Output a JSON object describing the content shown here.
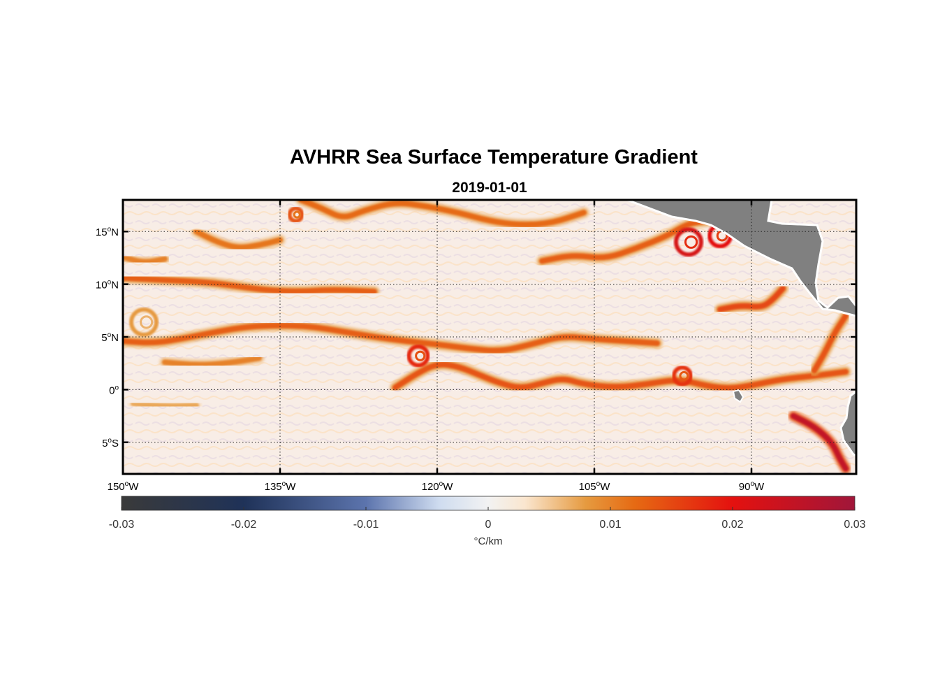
{
  "title": "AVHRR Sea Surface Temperature Gradient",
  "subtitle": "2019-01-01",
  "map": {
    "lon_range": [
      -150,
      -80
    ],
    "lat_range": [
      -8,
      18
    ],
    "grid": true,
    "x_ticks": [
      {
        "value": -150,
        "deg": "150",
        "hemi": "W"
      },
      {
        "value": -135,
        "deg": "135",
        "hemi": "W"
      },
      {
        "value": -120,
        "deg": "120",
        "hemi": "W"
      },
      {
        "value": -105,
        "deg": "105",
        "hemi": "W"
      },
      {
        "value": -90,
        "deg": "90",
        "hemi": "W"
      }
    ],
    "y_ticks": [
      {
        "value": 15,
        "deg": "15",
        "hemi": "N"
      },
      {
        "value": 10,
        "deg": "10",
        "hemi": "N"
      },
      {
        "value": 5,
        "deg": "5",
        "hemi": "N"
      },
      {
        "value": 0,
        "deg": "0",
        "hemi": ""
      },
      {
        "value": -5,
        "deg": "5",
        "hemi": "S"
      }
    ],
    "land_color": "#808080",
    "ocean_background": "#f8ede6",
    "fronts": [
      {
        "pts": [
          [
            -150,
            10.6
          ],
          [
            -146,
            10.4
          ],
          [
            -142,
            10.2
          ],
          [
            -139,
            9.8
          ],
          [
            -136,
            9.4
          ],
          [
            -133,
            9.3
          ],
          [
            -130,
            9.5
          ],
          [
            -126,
            9.3
          ]
        ],
        "strength": 0.013
      },
      {
        "pts": [
          [
            -150,
            4.6
          ],
          [
            -147,
            4.4
          ],
          [
            -144,
            4.9
          ],
          [
            -141,
            5.5
          ],
          [
            -138,
            6.0
          ],
          [
            -135,
            6.1
          ],
          [
            -132,
            6.0
          ],
          [
            -129,
            5.5
          ],
          [
            -126,
            5.0
          ],
          [
            -123,
            4.6
          ],
          [
            -120,
            4.3
          ],
          [
            -117,
            3.9
          ],
          [
            -114,
            3.6
          ],
          [
            -111,
            4.3
          ],
          [
            -108,
            5.1
          ],
          [
            -105,
            4.8
          ],
          [
            -102,
            4.6
          ],
          [
            -99,
            4.4
          ]
        ],
        "strength": 0.013
      },
      {
        "pts": [
          [
            -124,
            0.2
          ],
          [
            -122,
            1.5
          ],
          [
            -120,
            2.5
          ],
          [
            -118,
            2.2
          ],
          [
            -116,
            1.4
          ],
          [
            -114,
            0.6
          ],
          [
            -112,
            0.1
          ],
          [
            -110,
            0.6
          ],
          [
            -108,
            1.1
          ],
          [
            -106,
            0.5
          ],
          [
            -103,
            0.2
          ],
          [
            -100,
            0.5
          ],
          [
            -97,
            1.0
          ],
          [
            -94,
            0.3
          ],
          [
            -92,
            0.1
          ],
          [
            -90,
            0.4
          ],
          [
            -87,
            1.0
          ],
          [
            -84,
            1.3
          ],
          [
            -81,
            1.7
          ]
        ],
        "strength": 0.014
      },
      {
        "pts": [
          [
            -133,
            18
          ],
          [
            -131,
            17.2
          ],
          [
            -129,
            16.2
          ],
          [
            -127,
            17.0
          ],
          [
            -124,
            17.8
          ],
          [
            -121,
            17.4
          ],
          [
            -118,
            16.8
          ],
          [
            -115,
            16.0
          ],
          [
            -112,
            15.6
          ],
          [
            -109,
            15.8
          ],
          [
            -106,
            16.8
          ]
        ],
        "strength": 0.012
      },
      {
        "pts": [
          [
            -110,
            12.2
          ],
          [
            -107,
            12.8
          ],
          [
            -104,
            12.4
          ],
          [
            -101,
            13.4
          ],
          [
            -98,
            14.6
          ],
          [
            -96,
            15.8
          ],
          [
            -94,
            16.0
          ]
        ],
        "strength": 0.013
      },
      {
        "pts": [
          [
            -143,
            15.0
          ],
          [
            -141,
            14.0
          ],
          [
            -139,
            13.4
          ],
          [
            -137,
            13.7
          ],
          [
            -135,
            14.2
          ]
        ],
        "strength": 0.011
      },
      {
        "pts": [
          [
            -87,
            9.6
          ],
          [
            -88,
            8.5
          ],
          [
            -89,
            7.8
          ],
          [
            -91,
            8.0
          ],
          [
            -93,
            7.6
          ]
        ],
        "strength": 0.015
      },
      {
        "pts": [
          [
            -81,
            7.0
          ],
          [
            -82,
            5.5
          ],
          [
            -83,
            3.5
          ],
          [
            -84,
            1.8
          ]
        ],
        "strength": 0.014
      },
      {
        "pts": [
          [
            -86,
            -2.5
          ],
          [
            -84,
            -3.5
          ],
          [
            -82.3,
            -5.0
          ],
          [
            -81.6,
            -6.5
          ],
          [
            -81,
            -7.5
          ]
        ],
        "strength": 0.025
      },
      {
        "pts": [
          [
            -150,
            12.6
          ],
          [
            -148,
            12.0
          ],
          [
            -146,
            12.4
          ]
        ],
        "strength": 0.01
      },
      {
        "pts": [
          [
            -146,
            2.6
          ],
          [
            -143,
            2.3
          ],
          [
            -140,
            2.5
          ],
          [
            -137,
            3.0
          ]
        ],
        "strength": 0.01
      },
      {
        "pts": [
          [
            -149,
            -1.3
          ],
          [
            -146,
            -1.6
          ],
          [
            -143,
            -1.5
          ]
        ],
        "strength": 0.007
      }
    ],
    "eddies": [
      {
        "lon": -121.8,
        "lat": 3.2,
        "r": 0.9,
        "strength": 0.018
      },
      {
        "lon": -96.6,
        "lat": 1.3,
        "r": 0.8,
        "strength": 0.017
      },
      {
        "lon": -96.0,
        "lat": 14.0,
        "r": 1.2,
        "strength": 0.022
      },
      {
        "lon": -93.0,
        "lat": 14.6,
        "r": 1.0,
        "strength": 0.02
      },
      {
        "lon": -133.5,
        "lat": 16.6,
        "r": 0.6,
        "strength": 0.014
      },
      {
        "lon": -148.0,
        "lat": 6.4,
        "r": 1.2,
        "strength": 0.008
      }
    ]
  },
  "colorbar": {
    "min": -0.03,
    "max": 0.03,
    "ticks": [
      {
        "value": -0.03,
        "label": "-0.03"
      },
      {
        "value": -0.02,
        "label": "-0.02"
      },
      {
        "value": -0.01,
        "label": "-0.01"
      },
      {
        "value": 0,
        "label": "0"
      },
      {
        "value": 0.01,
        "label": "0.01"
      },
      {
        "value": 0.02,
        "label": "0.02"
      },
      {
        "value": 0.03,
        "label": "0.03"
      }
    ],
    "label": "°C/km",
    "stops": [
      {
        "value": -0.03,
        "color": "#3a3a3a"
      },
      {
        "value": -0.02,
        "color": "#1f3258"
      },
      {
        "value": -0.01,
        "color": "#5c74ad"
      },
      {
        "value": -0.004,
        "color": "#cfdcf0"
      },
      {
        "value": 0,
        "color": "#f2f2f2"
      },
      {
        "value": 0.003,
        "color": "#fae6cf"
      },
      {
        "value": 0.008,
        "color": "#e69a3f"
      },
      {
        "value": 0.012,
        "color": "#e66a13"
      },
      {
        "value": 0.02,
        "color": "#e4110f"
      },
      {
        "value": 0.03,
        "color": "#a0163a"
      }
    ]
  }
}
